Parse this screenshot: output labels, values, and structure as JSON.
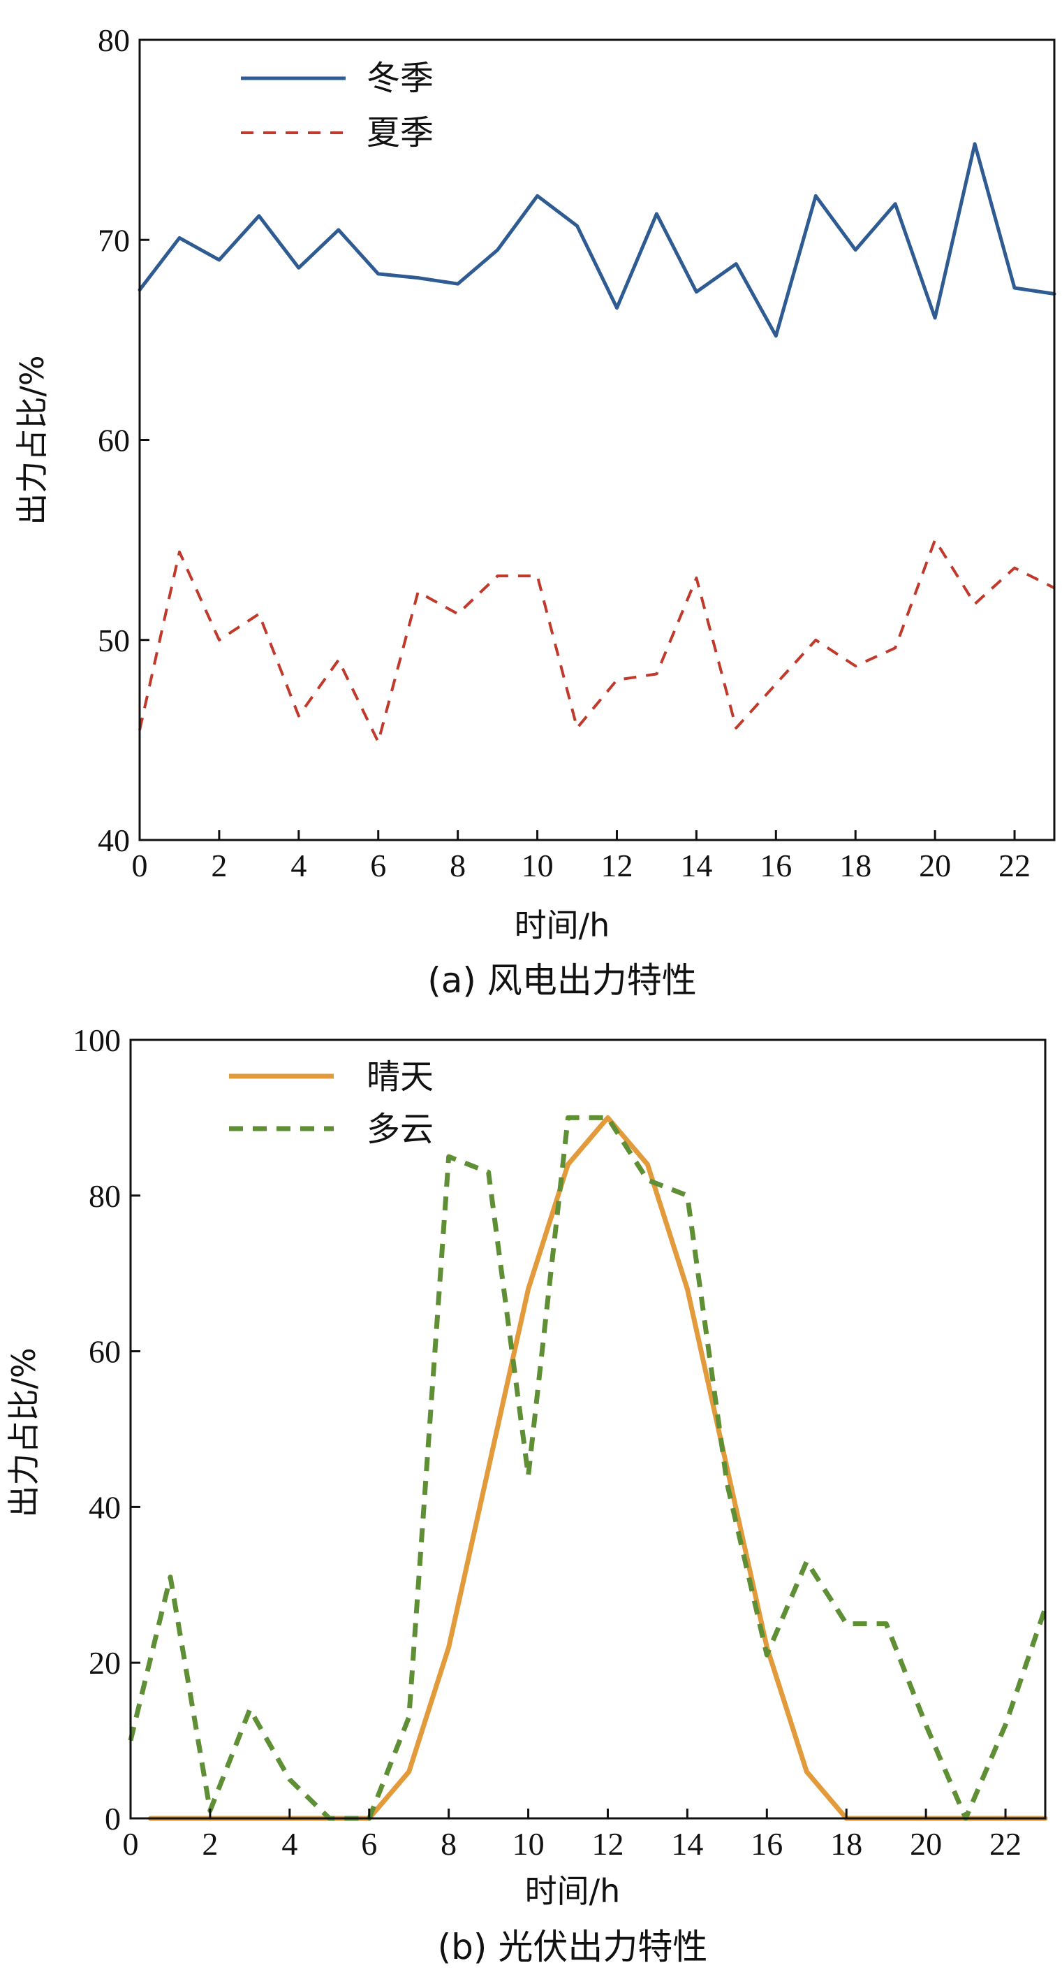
{
  "chart_data": [
    {
      "type": "line",
      "caption": "(a) 风电出力特性",
      "xlabel": "时间/h",
      "ylabel": "出力占比/%",
      "xlim": [
        0,
        23
      ],
      "ylim": [
        40,
        80
      ],
      "xticks": [
        0,
        2,
        4,
        6,
        8,
        10,
        12,
        14,
        16,
        18,
        20,
        22
      ],
      "yticks": [
        40,
        50,
        60,
        70,
        80
      ],
      "grid": false,
      "legend_position": "top-left",
      "x": [
        0,
        1,
        2,
        3,
        4,
        5,
        6,
        7,
        8,
        9,
        10,
        11,
        12,
        13,
        14,
        15,
        16,
        17,
        18,
        19,
        20,
        21,
        22,
        23
      ],
      "series": [
        {
          "name": "冬季",
          "color": "#2f5b93",
          "dash": "solid",
          "values": [
            67.5,
            70.1,
            69.0,
            71.2,
            68.6,
            70.5,
            68.3,
            68.1,
            67.8,
            69.5,
            72.2,
            70.7,
            66.6,
            71.3,
            67.4,
            68.8,
            65.2,
            72.2,
            69.5,
            71.8,
            66.1,
            74.8,
            67.6,
            67.3
          ]
        },
        {
          "name": "夏季",
          "color": "#c0392b",
          "dash": "dashed",
          "values": [
            45.5,
            54.4,
            50.0,
            51.3,
            46.2,
            49.0,
            44.9,
            52.4,
            51.3,
            53.2,
            53.2,
            45.6,
            48.0,
            48.3,
            53.1,
            45.6,
            47.8,
            50.0,
            48.7,
            49.6,
            55.0,
            51.8,
            53.6,
            52.6
          ]
        }
      ]
    },
    {
      "type": "line",
      "caption": "(b) 光伏出力特性",
      "xlabel": "时间/h",
      "ylabel": "出力占比/%",
      "xlim": [
        0,
        23
      ],
      "ylim": [
        0,
        100
      ],
      "xticks": [
        0,
        2,
        4,
        6,
        8,
        10,
        12,
        14,
        16,
        18,
        20,
        22
      ],
      "yticks": [
        0,
        20,
        40,
        60,
        80,
        100
      ],
      "grid": false,
      "legend_position": "top-left",
      "series": [
        {
          "name": "晴天",
          "color": "#e39a3b",
          "dash": "solid",
          "x": [
            0.5,
            1,
            2,
            3,
            4,
            5,
            6,
            7,
            8,
            9,
            10,
            11,
            12,
            13,
            14,
            15,
            16,
            17,
            18,
            19,
            20,
            21,
            22,
            23
          ],
          "values": [
            0,
            0,
            0,
            0,
            0,
            0,
            0,
            6,
            22,
            45,
            68,
            84,
            90,
            84,
            68,
            45,
            22,
            6,
            0,
            0,
            0,
            0,
            0,
            0
          ]
        },
        {
          "name": "多云",
          "color": "#5f8f35",
          "dash": "dashed",
          "x": [
            0,
            1,
            2,
            3,
            4,
            5,
            6,
            7,
            8,
            9,
            10,
            11,
            12,
            13,
            14,
            15,
            16,
            17,
            18,
            19,
            20,
            21,
            22,
            23
          ],
          "values": [
            10,
            31,
            1,
            14,
            5,
            0,
            0,
            13,
            85,
            83,
            44,
            90,
            90,
            82,
            80,
            43,
            21,
            33,
            25,
            25,
            12,
            0,
            12,
            27
          ]
        }
      ]
    }
  ]
}
